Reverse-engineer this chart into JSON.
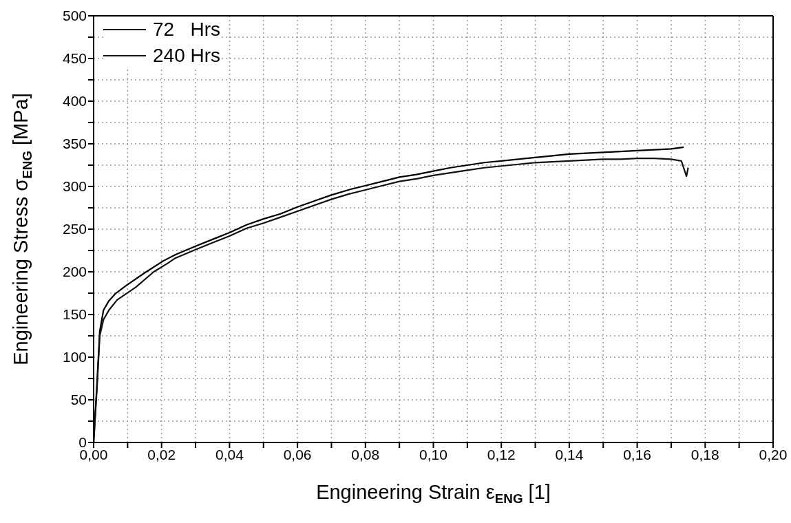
{
  "chart_data": {
    "type": "line",
    "xlabel": "Engineering Strain ε$_{ENG}$ [1]",
    "ylabel": "Engineering Stress σ$_{ENG}$ [MPa]",
    "xlim": [
      0,
      0.2
    ],
    "xticks": [
      {
        "value": 0,
        "label": "0,00"
      },
      {
        "value": 0.01,
        "label": null
      },
      {
        "value": 0.02,
        "label": "0,02"
      },
      {
        "value": 0.03,
        "label": null
      },
      {
        "value": 0.04,
        "label": "0,04"
      },
      {
        "value": 0.05,
        "label": null
      },
      {
        "value": 0.06,
        "label": "0,06"
      },
      {
        "value": 0.07,
        "label": null
      },
      {
        "value": 0.08,
        "label": "0,08"
      },
      {
        "value": 0.09,
        "label": null
      },
      {
        "value": 0.1,
        "label": "0,10"
      },
      {
        "value": 0.11,
        "label": null
      },
      {
        "value": 0.12,
        "label": "0,12"
      },
      {
        "value": 0.13,
        "label": null
      },
      {
        "value": 0.14,
        "label": "0,14"
      },
      {
        "value": 0.15,
        "label": null
      },
      {
        "value": 0.16,
        "label": "0,16"
      },
      {
        "value": 0.17,
        "label": null
      },
      {
        "value": 0.18,
        "label": "0,18"
      },
      {
        "value": 0.19,
        "label": null
      },
      {
        "value": 0.2,
        "label": "0,20"
      }
    ],
    "ylim": [
      0,
      500
    ],
    "yticks": [
      0,
      {
        "value": 25,
        "label": null
      },
      50,
      {
        "value": 75,
        "label": null
      },
      100,
      {
        "value": 125,
        "label": null
      },
      150,
      {
        "value": 175,
        "label": null
      },
      200,
      {
        "value": 225,
        "label": null
      },
      250,
      {
        "value": 275,
        "label": null
      },
      300,
      {
        "value": 325,
        "label": null
      },
      350,
      {
        "value": 375,
        "label": null
      },
      400,
      {
        "value": 425,
        "label": null
      },
      450,
      {
        "value": 475,
        "label": null
      },
      500
    ],
    "grid": true,
    "legend": "top left",
    "line_style": "solid",
    "marker": "none",
    "series": [
      {
        "name": "72   Hrs",
        "color": "#000000",
        "x": [
          0,
          0.001,
          0.0018,
          0.0029,
          0.0045,
          0.0063,
          0.0096,
          0.0151,
          0.0206,
          0.024,
          0.03,
          0.035,
          0.04,
          0.045,
          0.05,
          0.055,
          0.06,
          0.065,
          0.07,
          0.075,
          0.08,
          0.085,
          0.09,
          0.095,
          0.1,
          0.105,
          0.11,
          0.115,
          0.12,
          0.125,
          0.13,
          0.135,
          0.14,
          0.145,
          0.15,
          0.155,
          0.16,
          0.165,
          0.17,
          0.1737
        ],
        "values": [
          0,
          70,
          130,
          155,
          166,
          174,
          184,
          199,
          213,
          220,
          230,
          238,
          246,
          255,
          262,
          268,
          276,
          283,
          290,
          296,
          301,
          306,
          311,
          314,
          318,
          322,
          325,
          328,
          330,
          332,
          334,
          336,
          338,
          339,
          340,
          341,
          342,
          343,
          344,
          346
        ]
      },
      {
        "name": "240 Hrs",
        "color": "#111111",
        "x": [
          0,
          0.001,
          0.0018,
          0.0029,
          0.0045,
          0.0069,
          0.0124,
          0.0177,
          0.0218,
          0.024,
          0.03,
          0.035,
          0.04,
          0.045,
          0.05,
          0.055,
          0.06,
          0.065,
          0.07,
          0.075,
          0.08,
          0.085,
          0.09,
          0.095,
          0.1,
          0.105,
          0.11,
          0.115,
          0.12,
          0.125,
          0.13,
          0.135,
          0.14,
          0.145,
          0.15,
          0.155,
          0.16,
          0.165,
          0.17,
          0.173,
          0.1745,
          0.175
        ],
        "values": [
          0,
          65,
          125,
          144,
          155,
          167,
          182,
          200,
          210,
          216,
          226,
          234,
          242,
          251,
          257,
          264,
          271,
          278,
          285,
          291,
          296,
          301,
          306,
          309,
          313,
          316,
          319,
          322,
          324,
          326,
          328,
          329,
          330,
          331,
          332,
          332,
          333,
          333,
          332,
          330,
          312,
          322
        ]
      }
    ]
  }
}
